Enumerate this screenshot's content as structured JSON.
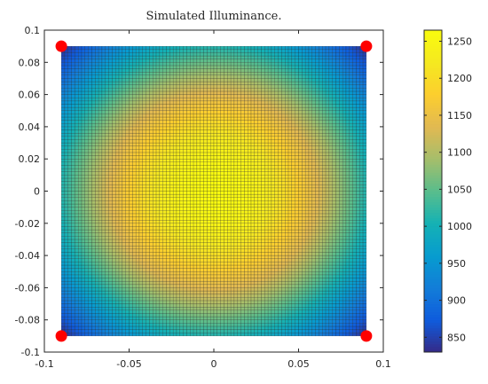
{
  "chart_data": {
    "type": "heatmap",
    "title": "Simulated Illuminance.",
    "xlabel": "",
    "ylabel": "",
    "xlim": [
      -0.1,
      0.1
    ],
    "ylim": [
      -0.1,
      0.1
    ],
    "grid": false,
    "x_ticks": [
      -0.1,
      -0.05,
      0,
      0.05,
      0.1
    ],
    "x_tick_labels": [
      "-0.1",
      "-0.05",
      "0",
      "0.05",
      "0.1"
    ],
    "y_ticks": [
      0.1,
      0.08,
      0.06,
      0.04,
      0.02,
      0,
      -0.02,
      -0.04,
      -0.06,
      -0.08,
      -0.1
    ],
    "y_tick_labels": [
      "0.1",
      "0.08",
      "0.06",
      "0.04",
      "0.02",
      "0",
      "-0.02",
      "-0.04",
      "-0.06",
      "-0.08",
      "-0.1"
    ],
    "surface": {
      "x_range": [
        -0.09,
        0.09
      ],
      "y_range": [
        -0.09,
        0.09
      ],
      "grid_cells": 90,
      "peak_value": 1265,
      "peak_at": [
        0,
        0
      ],
      "corner_value": 830
    },
    "markers": {
      "points": [
        [
          -0.09,
          0.09
        ],
        [
          0.09,
          0.09
        ],
        [
          -0.09,
          -0.09
        ],
        [
          0.09,
          -0.09
        ]
      ],
      "color": "#ff0000"
    },
    "colorbar": {
      "colormap": "parula",
      "range": [
        830,
        1265
      ],
      "ticks": [
        850,
        900,
        950,
        1000,
        1050,
        1100,
        1150,
        1200,
        1250
      ],
      "tick_labels": [
        "850",
        "900",
        "950",
        "1000",
        "1050",
        "1100",
        "1150",
        "1200",
        "1250"
      ],
      "placement": "right"
    }
  }
}
